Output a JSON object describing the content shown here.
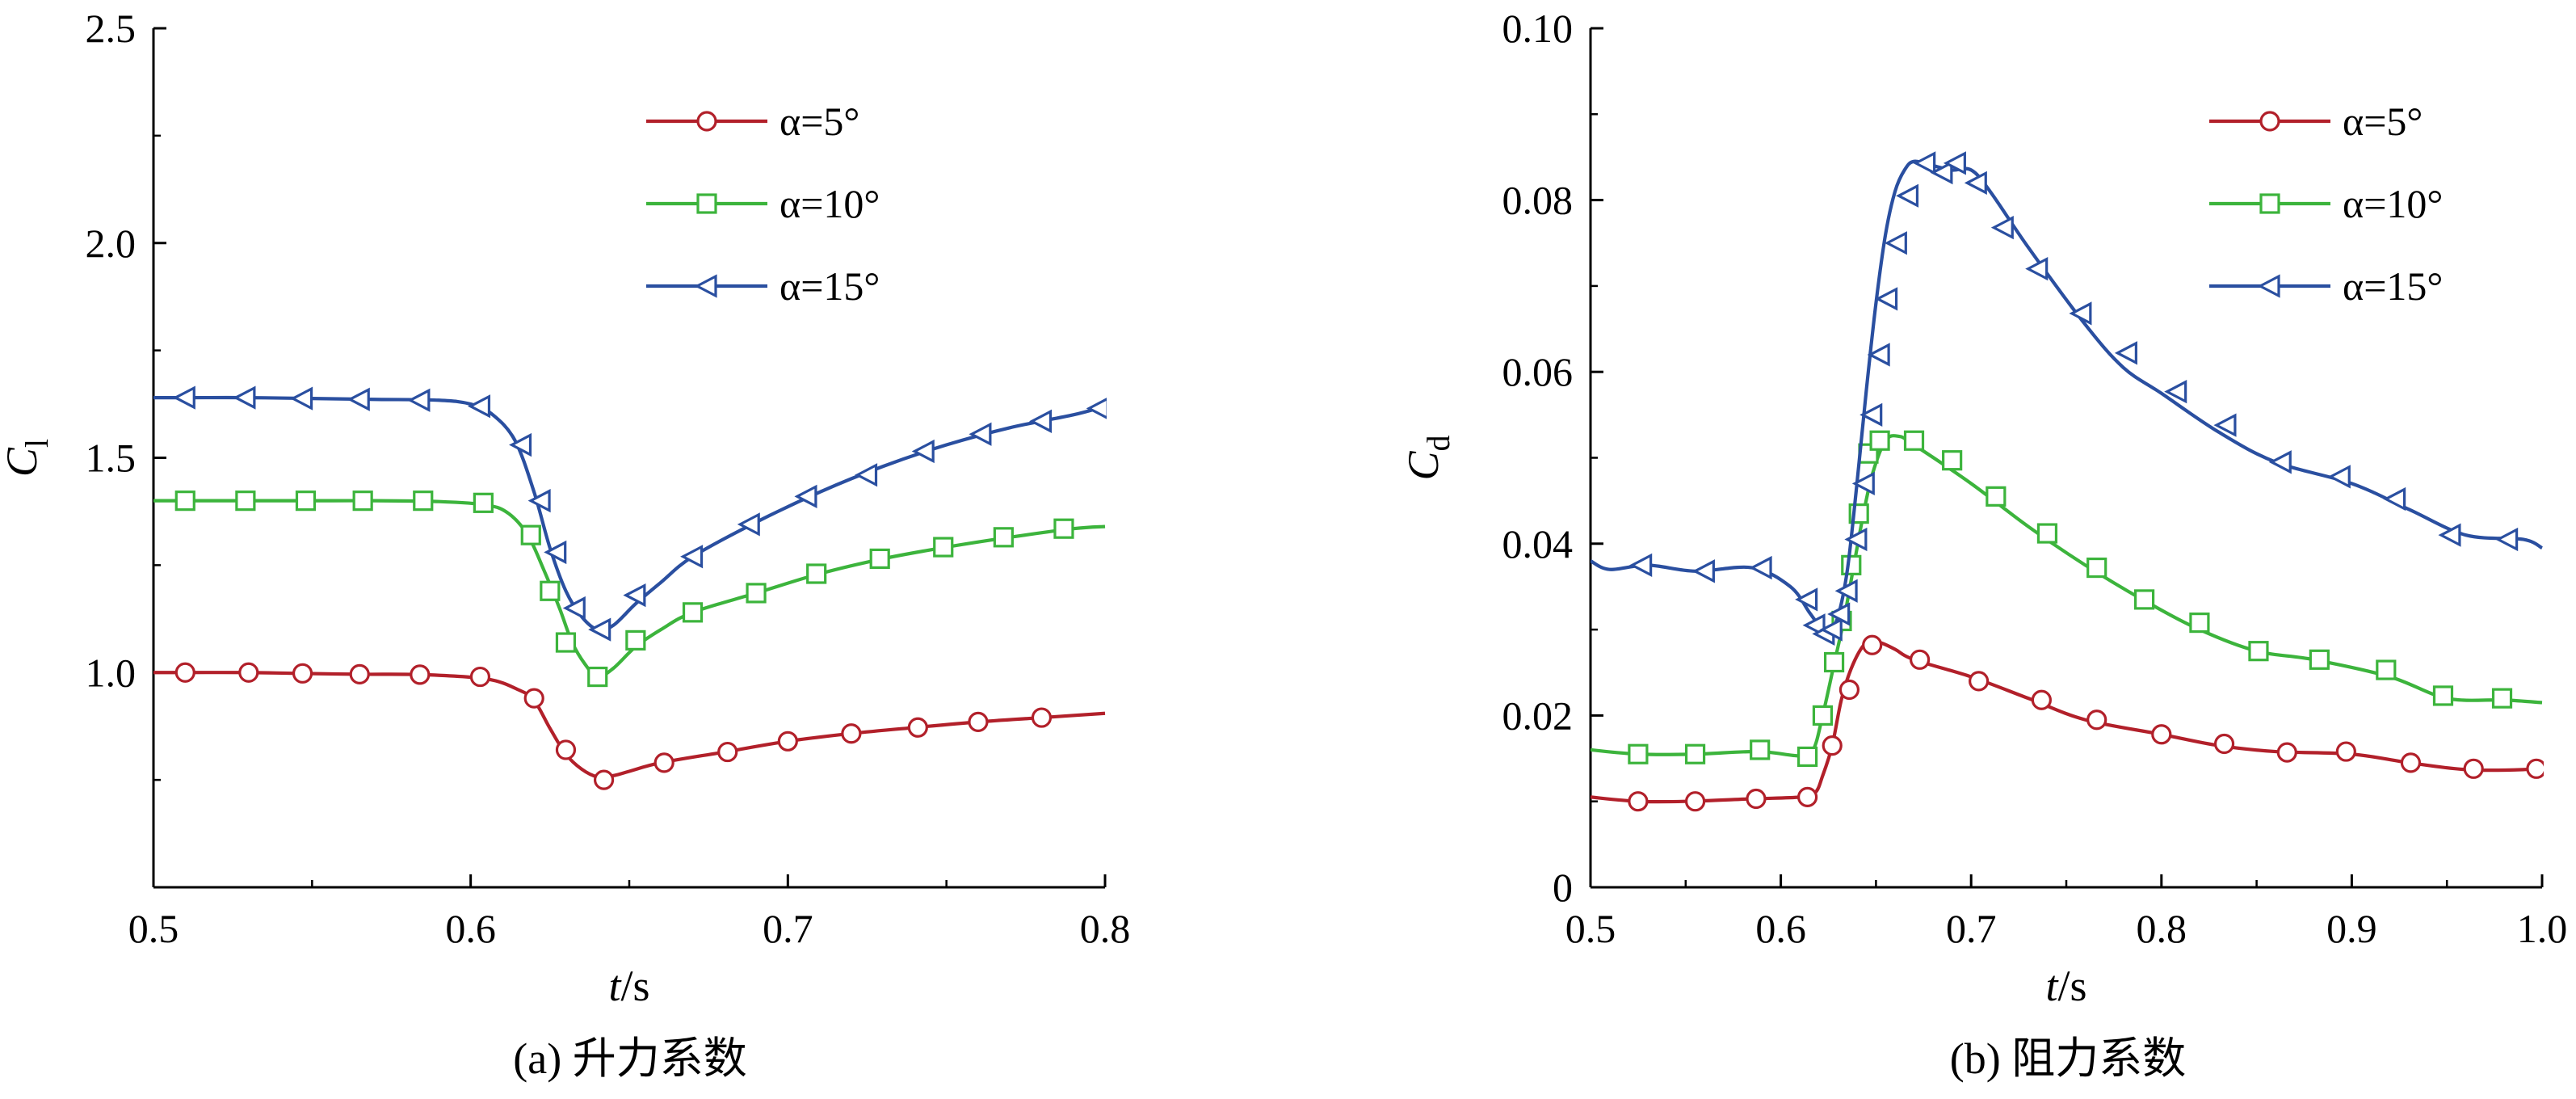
{
  "chart_data": [
    {
      "type": "line",
      "panel": "a",
      "caption": "(a)  升力系数",
      "xlabel": "t",
      "xunit": "/s",
      "ylabel": "C",
      "ylabel_sub": "l",
      "xlim": [
        0.5,
        0.8
      ],
      "ylim": [
        0.5,
        2.5
      ],
      "xticks": [
        "0.5",
        "0.6",
        "0.7",
        "0.8"
      ],
      "yticks": [
        "1.0",
        "1.5",
        "2.0",
        "2.5"
      ],
      "legend": {
        "placement": "top-right"
      },
      "series": [
        {
          "name": "α=5°",
          "color": "#b2202a",
          "marker": "circle",
          "x": [
            0.5,
            0.51,
            0.53,
            0.545,
            0.565,
            0.585,
            0.605,
            0.615,
            0.62,
            0.625,
            0.63,
            0.635,
            0.64,
            0.645,
            0.65,
            0.66,
            0.68,
            0.7,
            0.72,
            0.74,
            0.76,
            0.78,
            0.8
          ],
          "y": [
            1.0,
            1.0,
            1.0,
            0.998,
            0.996,
            0.995,
            0.985,
            0.96,
            0.935,
            0.87,
            0.81,
            0.775,
            0.757,
            0.76,
            0.77,
            0.79,
            0.815,
            0.84,
            0.858,
            0.872,
            0.885,
            0.895,
            0.905
          ],
          "markers_x": [
            0.51,
            0.53,
            0.547,
            0.565,
            0.584,
            0.603,
            0.62,
            0.63,
            0.642,
            0.661,
            0.681,
            0.7,
            0.72,
            0.741,
            0.76,
            0.78
          ],
          "markers_y": [
            1.0,
            1.0,
            0.998,
            0.996,
            0.995,
            0.99,
            0.94,
            0.82,
            0.75,
            0.79,
            0.815,
            0.84,
            0.858,
            0.872,
            0.885,
            0.895
          ]
        },
        {
          "name": "α=10°",
          "color": "#3cb43c",
          "marker": "square",
          "x": [
            0.5,
            0.51,
            0.53,
            0.55,
            0.57,
            0.59,
            0.605,
            0.612,
            0.618,
            0.623,
            0.628,
            0.632,
            0.636,
            0.64,
            0.645,
            0.652,
            0.66,
            0.67,
            0.69,
            0.71,
            0.73,
            0.75,
            0.77,
            0.79,
            0.8
          ],
          "y": [
            1.4,
            1.4,
            1.4,
            1.4,
            1.4,
            1.398,
            1.39,
            1.37,
            1.32,
            1.24,
            1.15,
            1.07,
            1.02,
            0.99,
            1.01,
            1.06,
            1.1,
            1.14,
            1.185,
            1.23,
            1.265,
            1.292,
            1.315,
            1.335,
            1.34
          ],
          "markers_x": [
            0.51,
            0.529,
            0.548,
            0.566,
            0.585,
            0.604,
            0.619,
            0.625,
            0.63,
            0.64,
            0.652,
            0.67,
            0.69,
            0.709,
            0.729,
            0.749,
            0.768,
            0.787
          ],
          "markers_y": [
            1.4,
            1.4,
            1.4,
            1.4,
            1.4,
            1.395,
            1.32,
            1.19,
            1.07,
            0.99,
            1.075,
            1.14,
            1.185,
            1.23,
            1.265,
            1.292,
            1.315,
            1.335
          ]
        },
        {
          "name": "α=15°",
          "color": "#2a4fa0",
          "marker": "triangle-left",
          "x": [
            0.5,
            0.51,
            0.53,
            0.55,
            0.57,
            0.59,
            0.6,
            0.607,
            0.614,
            0.62,
            0.625,
            0.63,
            0.635,
            0.64,
            0.645,
            0.652,
            0.66,
            0.67,
            0.69,
            0.71,
            0.73,
            0.75,
            0.77,
            0.79,
            0.8
          ],
          "y": [
            1.64,
            1.64,
            1.64,
            1.638,
            1.636,
            1.634,
            1.625,
            1.6,
            1.54,
            1.42,
            1.29,
            1.19,
            1.13,
            1.1,
            1.11,
            1.16,
            1.21,
            1.27,
            1.35,
            1.42,
            1.48,
            1.53,
            1.57,
            1.6,
            1.62
          ],
          "markers_x": [
            0.51,
            0.529,
            0.547,
            0.565,
            0.584,
            0.603,
            0.616,
            0.622,
            0.627,
            0.633,
            0.641,
            0.652,
            0.67,
            0.688,
            0.706,
            0.725,
            0.743,
            0.761,
            0.78,
            0.798
          ],
          "markers_y": [
            1.64,
            1.64,
            1.638,
            1.636,
            1.634,
            1.62,
            1.53,
            1.4,
            1.28,
            1.15,
            1.1,
            1.18,
            1.27,
            1.345,
            1.41,
            1.46,
            1.515,
            1.555,
            1.585,
            1.615
          ]
        }
      ]
    },
    {
      "type": "line",
      "panel": "b",
      "caption": "(b)  阻力系数",
      "xlabel": "t",
      "xunit": "/s",
      "ylabel": "C",
      "ylabel_sub": "d",
      "xlim": [
        0.5,
        1.0
      ],
      "ylim": [
        0,
        0.1
      ],
      "xticks": [
        "0.5",
        "0.6",
        "0.7",
        "0.8",
        "0.9",
        "1.0"
      ],
      "yticks": [
        "0",
        "0.02",
        "0.04",
        "0.06",
        "0.08",
        "0.10"
      ],
      "legend": {
        "placement": "top-right"
      },
      "series": [
        {
          "name": "α=5°",
          "color": "#b2202a",
          "marker": "circle",
          "x": [
            0.5,
            0.525,
            0.55,
            0.585,
            0.61,
            0.618,
            0.622,
            0.627,
            0.632,
            0.638,
            0.645,
            0.652,
            0.66,
            0.67,
            0.7,
            0.73,
            0.76,
            0.8,
            0.83,
            0.86,
            0.9,
            0.93,
            0.96,
            0.99,
            1.0
          ],
          "y": [
            0.0105,
            0.01,
            0.01,
            0.0103,
            0.0105,
            0.011,
            0.013,
            0.0165,
            0.022,
            0.026,
            0.0285,
            0.0285,
            0.0277,
            0.0265,
            0.0245,
            0.022,
            0.0195,
            0.0178,
            0.0165,
            0.0158,
            0.0155,
            0.0145,
            0.0137,
            0.0137,
            0.014
          ],
          "markers_x": [
            0.525,
            0.555,
            0.587,
            0.614,
            0.627,
            0.636,
            0.648,
            0.673,
            0.704,
            0.737,
            0.766,
            0.8,
            0.833,
            0.866,
            0.897,
            0.931,
            0.964,
            0.997
          ],
          "markers_y": [
            0.01,
            0.01,
            0.0103,
            0.0105,
            0.0165,
            0.023,
            0.0282,
            0.0265,
            0.024,
            0.0218,
            0.0195,
            0.0178,
            0.0167,
            0.0157,
            0.0158,
            0.0145,
            0.0138,
            0.0138
          ]
        },
        {
          "name": "α=10°",
          "color": "#3cb43c",
          "marker": "square",
          "x": [
            0.5,
            0.525,
            0.555,
            0.588,
            0.61,
            0.617,
            0.622,
            0.628,
            0.633,
            0.638,
            0.643,
            0.648,
            0.655,
            0.662,
            0.67,
            0.7,
            0.73,
            0.76,
            0.79,
            0.82,
            0.85,
            0.88,
            0.92,
            0.95,
            0.98,
            1.0
          ],
          "y": [
            0.016,
            0.0155,
            0.0155,
            0.0158,
            0.0153,
            0.016,
            0.02,
            0.026,
            0.031,
            0.037,
            0.043,
            0.048,
            0.052,
            0.0525,
            0.0515,
            0.047,
            0.042,
            0.0375,
            0.0335,
            0.03,
            0.0275,
            0.0265,
            0.0245,
            0.022,
            0.0218,
            0.0215
          ],
          "markers_x": [
            0.525,
            0.555,
            0.589,
            0.614,
            0.622,
            0.628,
            0.632,
            0.637,
            0.641,
            0.646,
            0.652,
            0.67,
            0.69,
            0.713,
            0.74,
            0.766,
            0.791,
            0.82,
            0.851,
            0.883,
            0.918,
            0.948,
            0.979
          ],
          "markers_y": [
            0.0155,
            0.0155,
            0.016,
            0.0152,
            0.02,
            0.0262,
            0.031,
            0.0375,
            0.0435,
            0.0505,
            0.052,
            0.052,
            0.0497,
            0.0455,
            0.0412,
            0.0372,
            0.0335,
            0.0308,
            0.0275,
            0.0265,
            0.0253,
            0.0223,
            0.022
          ]
        },
        {
          "name": "α=15°",
          "color": "#2a4fa0",
          "marker": "triangle-left",
          "x": [
            0.5,
            0.51,
            0.53,
            0.555,
            0.585,
            0.605,
            0.615,
            0.62,
            0.625,
            0.63,
            0.635,
            0.64,
            0.645,
            0.65,
            0.655,
            0.66,
            0.665,
            0.67,
            0.68,
            0.69,
            0.7,
            0.71,
            0.73,
            0.76,
            0.78,
            0.8,
            0.83,
            0.86,
            0.9,
            0.93,
            0.96,
            0.99,
            1.0
          ],
          "y": [
            0.038,
            0.037,
            0.0375,
            0.0368,
            0.0372,
            0.035,
            0.032,
            0.0305,
            0.0295,
            0.0315,
            0.037,
            0.047,
            0.058,
            0.068,
            0.076,
            0.081,
            0.0835,
            0.0845,
            0.084,
            0.0835,
            0.0835,
            0.081,
            0.0745,
            0.0655,
            0.0605,
            0.0575,
            0.053,
            0.0495,
            0.047,
            0.044,
            0.041,
            0.0405,
            0.0395
          ],
          "markers_x": [
            0.527,
            0.56,
            0.59,
            0.614,
            0.618,
            0.623,
            0.627,
            0.631,
            0.635,
            0.64,
            0.644,
            0.648,
            0.652,
            0.656,
            0.661,
            0.667,
            0.676,
            0.685,
            0.692,
            0.703,
            0.717,
            0.735,
            0.758,
            0.782,
            0.808,
            0.834,
            0.863,
            0.894,
            0.923,
            0.952,
            0.982
          ],
          "markers_y": [
            0.0375,
            0.0368,
            0.0372,
            0.0335,
            0.0305,
            0.0295,
            0.03,
            0.0318,
            0.0345,
            0.0405,
            0.047,
            0.055,
            0.062,
            0.0685,
            0.075,
            0.0805,
            0.0843,
            0.0832,
            0.0843,
            0.082,
            0.0768,
            0.072,
            0.0668,
            0.0622,
            0.0577,
            0.0538,
            0.0495,
            0.0478,
            0.0452,
            0.041,
            0.0405
          ]
        }
      ]
    }
  ]
}
